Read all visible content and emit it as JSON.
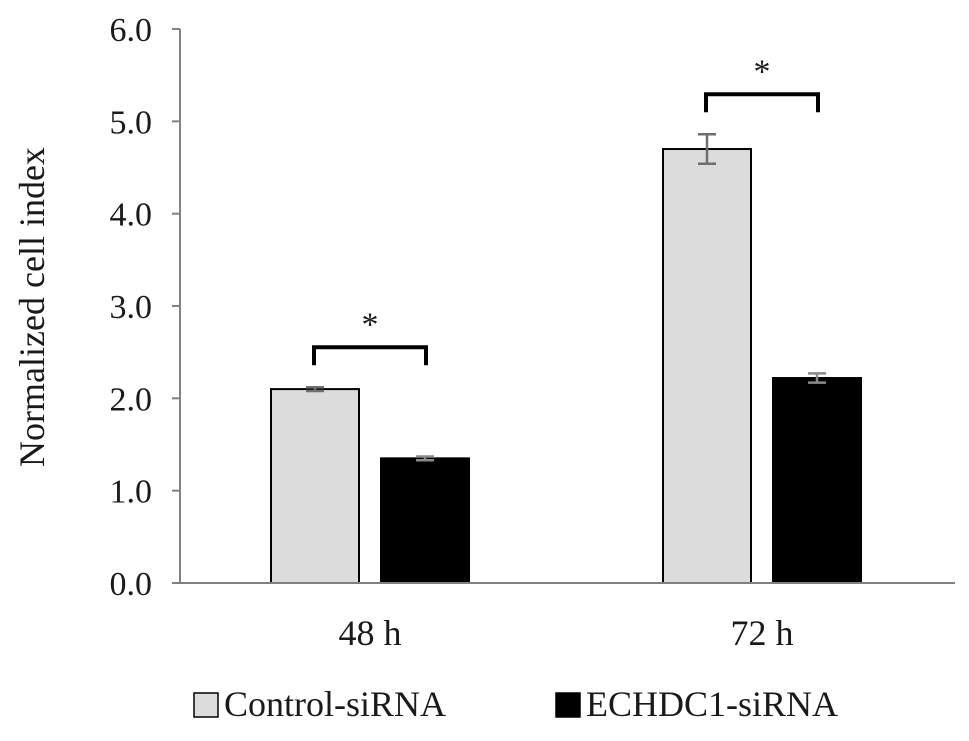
{
  "chart_data": {
    "type": "bar",
    "title": "",
    "xlabel": "",
    "ylabel": "Normalized cell index",
    "ylim": [
      0,
      6
    ],
    "yticks": [
      "0.0",
      "1.0",
      "2.0",
      "3.0",
      "4.0",
      "5.0",
      "6.0"
    ],
    "categories": [
      "48 h",
      "72 h"
    ],
    "series": [
      {
        "name": "Control-siRNA",
        "values": [
          2.1,
          4.7
        ],
        "errors": [
          0.02,
          0.16
        ],
        "color": "#dcdcdc"
      },
      {
        "name": "ECHDC1-siRNA",
        "values": [
          1.35,
          2.22
        ],
        "errors": [
          0.02,
          0.05
        ],
        "color": "#000000"
      }
    ],
    "significance": [
      {
        "category": "48 h",
        "label": "*"
      },
      {
        "category": "72 h",
        "label": "*"
      }
    ],
    "legend_position": "bottom",
    "grid": false
  }
}
